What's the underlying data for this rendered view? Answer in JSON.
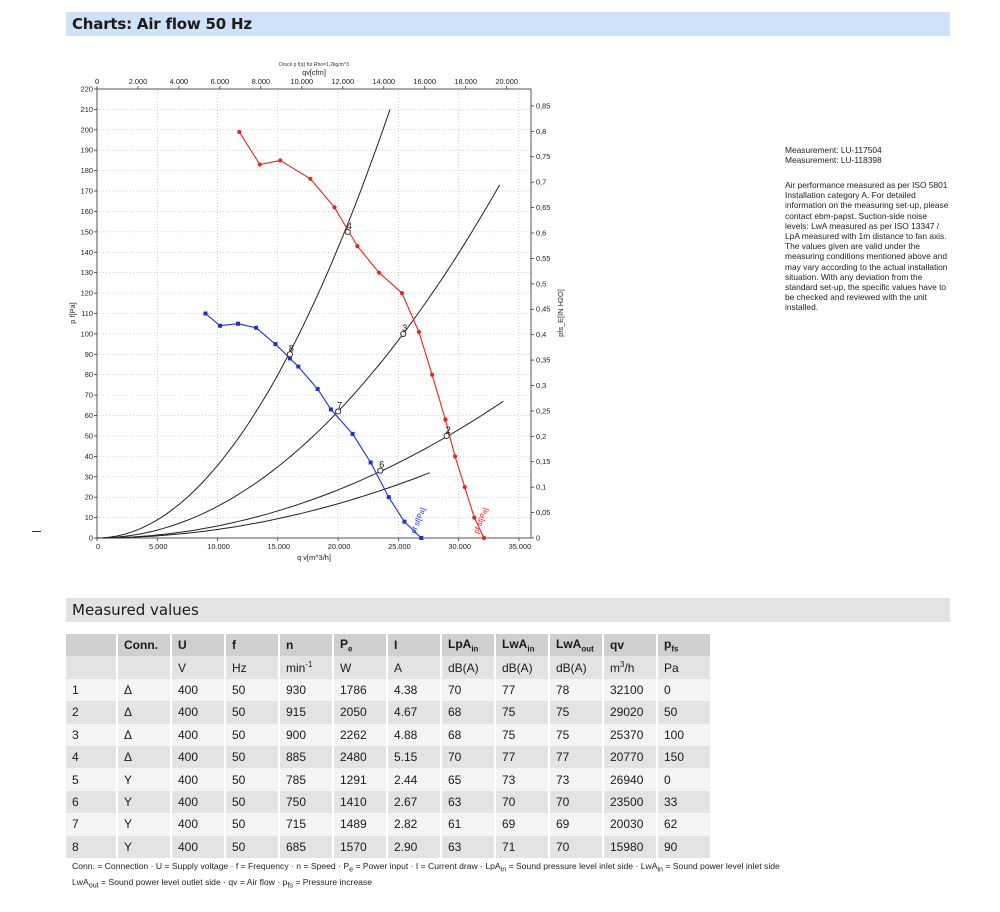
{
  "header": {
    "title": "Charts: Air flow 50 Hz"
  },
  "chart_data": {
    "type": "line",
    "title": "Druck p f(q) für Rho=1,2kg/m^3",
    "xlabel": "q v[m^3/h]",
    "x2label": "qv[cfm]",
    "ylabel": "p f[Pa]",
    "y2label": "pfs_E[IN H2O]",
    "xlim": [
      0,
      36000
    ],
    "ylim": [
      0,
      220
    ],
    "x_ticks": [
      "0",
      "5.000",
      "10.000",
      "15.000",
      "20.000",
      "25.000",
      "30.000",
      "35.000"
    ],
    "x2_ticks": [
      "0",
      "2.000",
      "4.000",
      "6.000",
      "8.000",
      "10.000",
      "12.000",
      "14.000",
      "16.000",
      "18.000",
      "20.000"
    ],
    "y_ticks": [
      "0",
      "10",
      "20",
      "30",
      "40",
      "50",
      "60",
      "70",
      "80",
      "90",
      "100",
      "110",
      "120",
      "130",
      "140",
      "150",
      "160",
      "170",
      "180",
      "190",
      "200",
      "210",
      "220"
    ],
    "y2_ticks": [
      "0",
      "0,05",
      "0,1",
      "0,15",
      "0,2",
      "0,25",
      "0,3",
      "0,35",
      "0,4",
      "0,45",
      "0,5",
      "0,55",
      "0,6",
      "0,65",
      "0,7",
      "0,75",
      "0,8",
      "0,85"
    ],
    "grid": true,
    "series": [
      {
        "name": "pf sf[Pa]",
        "color": "#e8241c",
        "x": [
          11800,
          13500,
          15200,
          17700,
          19700,
          21600,
          23400,
          25300,
          26700,
          27800,
          28900,
          29700,
          30500,
          31300,
          32100
        ],
        "y": [
          199,
          183,
          185,
          176,
          162,
          143,
          130,
          120,
          101,
          80,
          58,
          40,
          25,
          10,
          0
        ]
      },
      {
        "name": "pf sf[Pa]",
        "color": "#1c2fd6",
        "x": [
          9000,
          10200,
          11700,
          13200,
          14800,
          16000,
          16700,
          18300,
          19400,
          21200,
          22700,
          24200,
          25500,
          26900
        ],
        "y": [
          110,
          104,
          105,
          103,
          95,
          88,
          84,
          73,
          63,
          51,
          37,
          20,
          8,
          0
        ]
      }
    ],
    "system_curves": [
      {
        "x_end": 24300,
        "y_end": 210
      },
      {
        "x_end": 33400,
        "y_end": 173
      },
      {
        "x_end": 33700,
        "y_end": 67
      },
      {
        "x_end": 27600,
        "y_end": 32
      }
    ],
    "operating_points": [
      {
        "label": "2",
        "x": 29000,
        "y": 50
      },
      {
        "label": "3",
        "x": 25400,
        "y": 100
      },
      {
        "label": "4",
        "x": 20800,
        "y": 150
      },
      {
        "label": "6",
        "x": 23500,
        "y": 33
      },
      {
        "label": "7",
        "x": 20000,
        "y": 62
      },
      {
        "label": "8",
        "x": 16000,
        "y": 90
      }
    ]
  },
  "side_panel": {
    "measurement_1": "Measurement: LU-117504",
    "measurement_2": "Measurement: LU-118398",
    "note": "Air performance measured as per ISO 5801 Installation category A. For detailed information on the measuring set-up, please contact ebm-papst. Suction-side noise levels: LwA measured as per ISO 13347 / LpA measured with 1m distance to fan axis. The values given are valid under the measuring conditions mentioned above and may vary according to the actual installation situation. With any deviation from the standard set-up, the specific values have to be checked and reviewed with the unit installed."
  },
  "table_section": {
    "title": "Measured values",
    "headers": [
      "",
      "Conn.",
      "U",
      "f",
      "n",
      "Pe",
      "I",
      "LpAin",
      "LwAin",
      "LwAout",
      "qv",
      "pfs"
    ],
    "units": [
      "",
      "",
      "V",
      "Hz",
      "min-1",
      "W",
      "A",
      "dB(A)",
      "dB(A)",
      "dB(A)",
      "m3/h",
      "Pa"
    ],
    "rows": [
      [
        "1",
        "Δ",
        "400",
        "50",
        "930",
        "1786",
        "4.38",
        "70",
        "77",
        "78",
        "32100",
        "0"
      ],
      [
        "2",
        "Δ",
        "400",
        "50",
        "915",
        "2050",
        "4.67",
        "68",
        "75",
        "75",
        "29020",
        "50"
      ],
      [
        "3",
        "Δ",
        "400",
        "50",
        "900",
        "2262",
        "4.88",
        "68",
        "75",
        "75",
        "25370",
        "100"
      ],
      [
        "4",
        "Δ",
        "400",
        "50",
        "885",
        "2480",
        "5.15",
        "70",
        "77",
        "77",
        "20770",
        "150"
      ],
      [
        "5",
        "Y",
        "400",
        "50",
        "785",
        "1291",
        "2.44",
        "65",
        "73",
        "73",
        "26940",
        "0"
      ],
      [
        "6",
        "Y",
        "400",
        "50",
        "750",
        "1410",
        "2.67",
        "63",
        "70",
        "70",
        "23500",
        "33"
      ],
      [
        "7",
        "Y",
        "400",
        "50",
        "715",
        "1489",
        "2.82",
        "61",
        "69",
        "69",
        "20030",
        "62"
      ],
      [
        "8",
        "Y",
        "400",
        "50",
        "685",
        "1570",
        "2.90",
        "63",
        "71",
        "70",
        "15980",
        "90"
      ]
    ]
  },
  "legend": {
    "line1": "Conn. = Connection · U = Supply voltage · f = Frequency · n = Speed · Pe = Power input · I = Current draw · LpAin = Sound pressure level inlet side · LwAin = Sound power level inlet side",
    "line2": "LwAout = Sound power level outlet side · qv = Air flow · pfs = Pressure increase"
  }
}
